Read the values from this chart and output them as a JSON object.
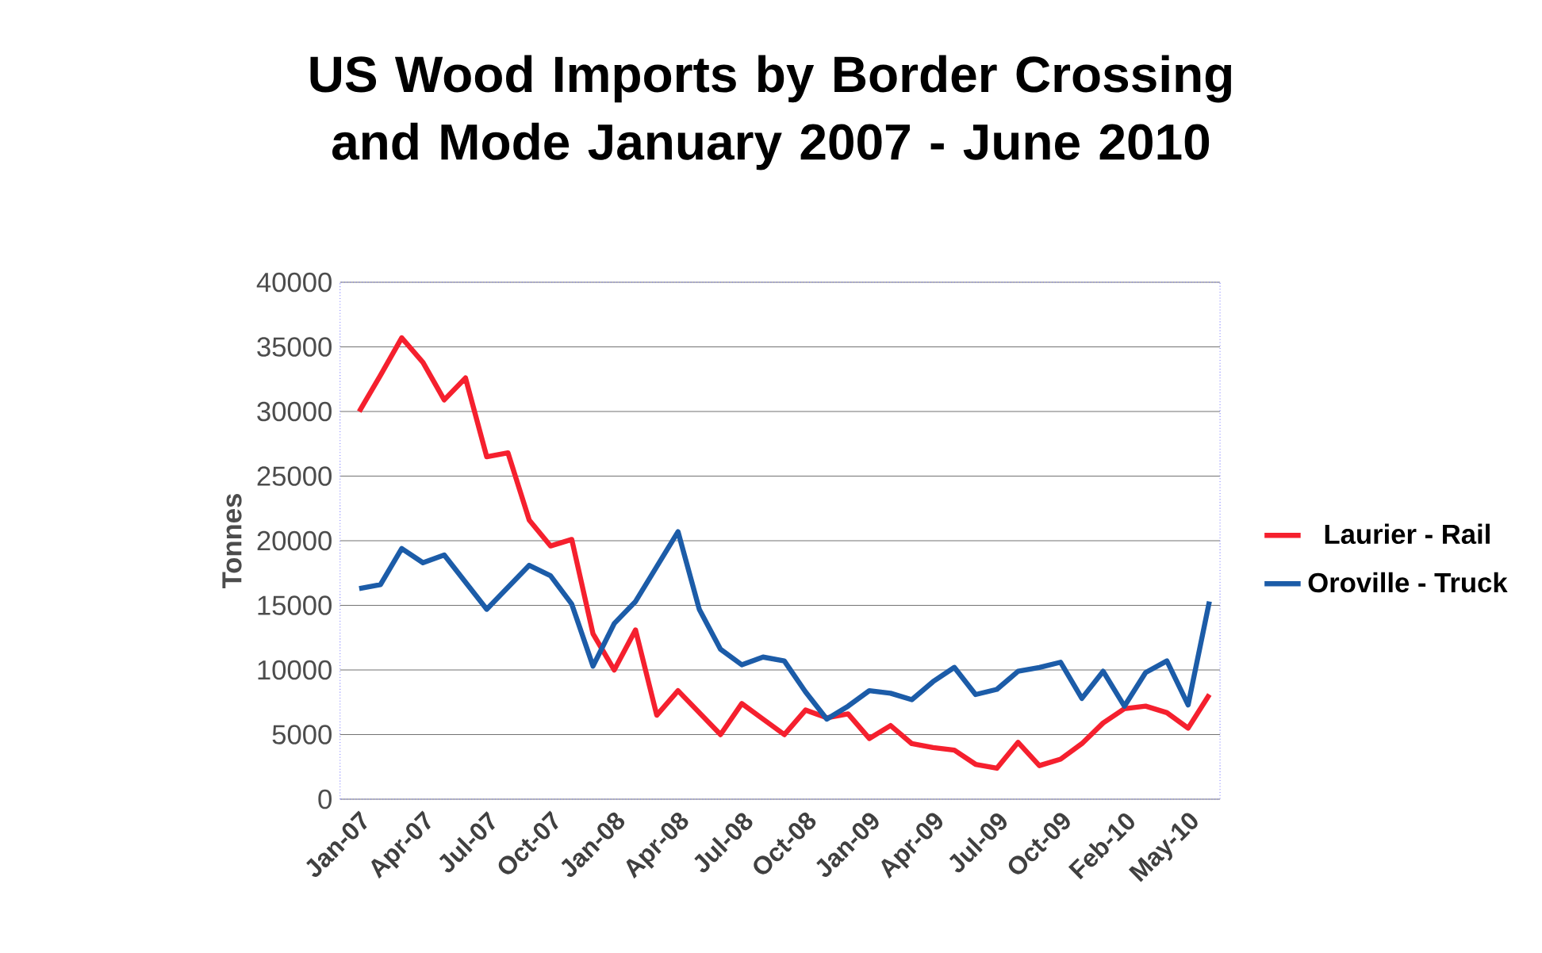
{
  "chart_data": {
    "type": "line",
    "title": "US Wood Imports by Border Crossing and Mode January 2007 - June 2010",
    "ylabel": "Tonnes",
    "categories": [
      "Jan-07",
      null,
      null,
      "Apr-07",
      null,
      null,
      "Jul-07",
      null,
      null,
      "Oct-07",
      null,
      null,
      "Jan-08",
      null,
      null,
      "Apr-08",
      null,
      null,
      "Jul-08",
      null,
      null,
      "Oct-08",
      null,
      null,
      "Jan-09",
      null,
      null,
      "Apr-09",
      null,
      null,
      "Jul-09",
      null,
      null,
      "Oct-09",
      null,
      null,
      "Feb-10",
      null,
      null,
      "May-10",
      null
    ],
    "series": [
      {
        "name": "Laurier - Rail",
        "color": "#f5202e",
        "values": [
          30000,
          32800,
          35700,
          33800,
          30900,
          32600,
          26500,
          26800,
          21600,
          19600,
          20100,
          12800,
          10000,
          13100,
          6500,
          8400,
          6700,
          5000,
          7400,
          6200,
          5000,
          6900,
          6300,
          6600,
          4700,
          5700,
          4300,
          4000,
          3800,
          2700,
          2400,
          4400,
          2600,
          3100,
          4300,
          5900,
          7000,
          7200,
          6700,
          5500,
          8100
        ]
      },
      {
        "name": "Oroville - Truck",
        "color": "#1c5ca8",
        "values": [
          16300,
          16600,
          19400,
          18300,
          18900,
          16800,
          14700,
          16400,
          18100,
          17300,
          15100,
          10300,
          13600,
          15300,
          18000,
          20700,
          14700,
          11600,
          10400,
          11000,
          10700,
          8300,
          6200,
          7200,
          8400,
          8200,
          7700,
          9100,
          10200,
          8100,
          8500,
          9900,
          10200,
          10600,
          7800,
          9900,
          7200,
          9800,
          10700,
          7300,
          15300
        ]
      }
    ],
    "ylim": [
      0,
      40000
    ],
    "yticks": [
      0,
      5000,
      10000,
      15000,
      20000,
      25000,
      30000,
      35000,
      40000
    ],
    "grid": "y",
    "legend": "right",
    "marker": "none",
    "line_style": "solid"
  }
}
